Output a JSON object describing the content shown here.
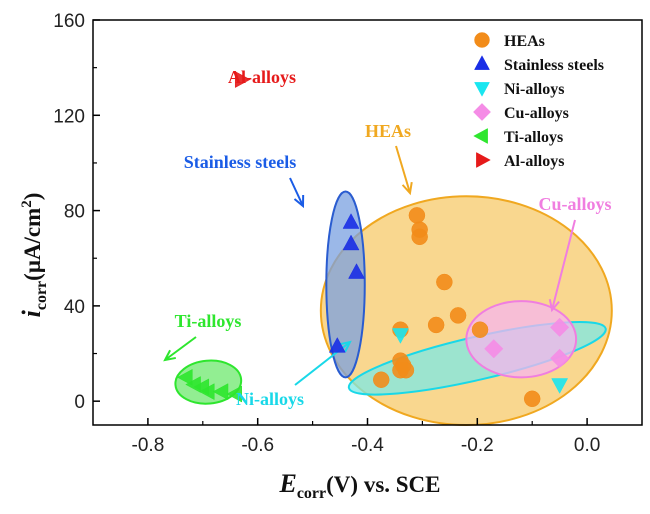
{
  "chart_data": {
    "type": "scatter",
    "xlabel_main": "E",
    "xlabel_sub": "corr",
    "xlabel_rest": "(V) vs. SCE",
    "ylabel_main": "i",
    "ylabel_sub": "corr",
    "ylabel_rest": "(μA/cm",
    "ylabel_sup": "2",
    "ylabel_close": ")",
    "xlim": [
      -0.9,
      0.1
    ],
    "ylim": [
      -10,
      160
    ],
    "x_ticks": [
      -0.8,
      -0.6,
      -0.4,
      -0.2,
      0.0
    ],
    "x_tick_labels": [
      "-0.8",
      "-0.6",
      "-0.4",
      "-0.2",
      "0.0"
    ],
    "y_ticks": [
      0,
      40,
      80,
      120,
      160
    ],
    "y_tick_labels": [
      "0",
      "40",
      "80",
      "120",
      "160"
    ],
    "legend_position": "top-right",
    "series": [
      {
        "name": "HEAs",
        "marker": "circle",
        "color": "#f28c1a",
        "points": [
          [
            -0.31,
            78
          ],
          [
            -0.305,
            72
          ],
          [
            -0.305,
            69
          ],
          [
            -0.26,
            50
          ],
          [
            -0.235,
            36
          ],
          [
            -0.275,
            32
          ],
          [
            -0.195,
            30
          ],
          [
            -0.34,
            30
          ],
          [
            -0.34,
            17
          ],
          [
            -0.335,
            15
          ],
          [
            -0.34,
            13
          ],
          [
            -0.33,
            13
          ],
          [
            -0.375,
            9
          ],
          [
            -0.1,
            1
          ]
        ]
      },
      {
        "name": "Stainless steels",
        "marker": "triangle-up",
        "color": "#1a2ee6",
        "points": [
          [
            -0.43,
            75
          ],
          [
            -0.43,
            66
          ],
          [
            -0.42,
            54
          ],
          [
            -0.455,
            23
          ]
        ]
      },
      {
        "name": "Ni-alloys",
        "marker": "triangle-down",
        "color": "#19e6f0",
        "points": [
          [
            -0.34,
            28
          ],
          [
            -0.05,
            7
          ]
        ]
      },
      {
        "name": "Cu-alloys",
        "marker": "diamond",
        "color": "#f58ce6",
        "points": [
          [
            -0.05,
            31
          ],
          [
            -0.17,
            22
          ],
          [
            -0.05,
            18
          ]
        ]
      },
      {
        "name": "Ti-alloys",
        "marker": "triangle-left",
        "color": "#2ee62e",
        "points": [
          [
            -0.73,
            10
          ],
          [
            -0.715,
            7
          ],
          [
            -0.7,
            6
          ],
          [
            -0.69,
            4
          ],
          [
            -0.665,
            4
          ],
          [
            -0.64,
            3
          ]
        ]
      },
      {
        "name": "Al-alloys",
        "marker": "triangle-right",
        "color": "#e61a1a",
        "points": [
          [
            -0.63,
            135
          ]
        ]
      }
    ],
    "annotations": [
      {
        "text": "Al-alloys",
        "color": "#e61a1a"
      },
      {
        "text": "Stainless steels",
        "color": "#1a5ce6"
      },
      {
        "text": "HEAs",
        "color": "#f0a820"
      },
      {
        "text": "Cu-alloys",
        "color": "#f07ee0"
      },
      {
        "text": "Ti-alloys",
        "color": "#2ee62e"
      },
      {
        "text": "Ni-alloys",
        "color": "#19d8e8"
      }
    ],
    "regions": [
      {
        "name": "HEAs",
        "fill": "#f7c96a",
        "stroke": "#f0a820",
        "cx": -0.22,
        "cy": 38,
        "rx": 0.265,
        "ry": 48,
        "rot": 0
      },
      {
        "name": "Stainless steels",
        "fill": "#7aa0e0",
        "stroke": "#2a5cd0",
        "cx": -0.44,
        "cy": 49,
        "rx": 0.035,
        "ry": 39,
        "rot": 0
      },
      {
        "name": "Ni-alloys",
        "fill": "#7ce8e4",
        "stroke": "#19d8e8",
        "cx": -0.2,
        "cy": 18,
        "rx": 0.24,
        "ry": 9,
        "rot": -13
      },
      {
        "name": "Cu-alloys",
        "fill": "#f5b5ee",
        "stroke": "#f07ee0",
        "cx": -0.12,
        "cy": 26,
        "rx": 0.1,
        "ry": 16,
        "rot": 0
      },
      {
        "name": "Ti-alloys",
        "fill": "#6ee86e",
        "stroke": "#2ee62e",
        "cx": -0.69,
        "cy": 8,
        "rx": 0.06,
        "ry": 9,
        "rot": -5
      }
    ]
  }
}
